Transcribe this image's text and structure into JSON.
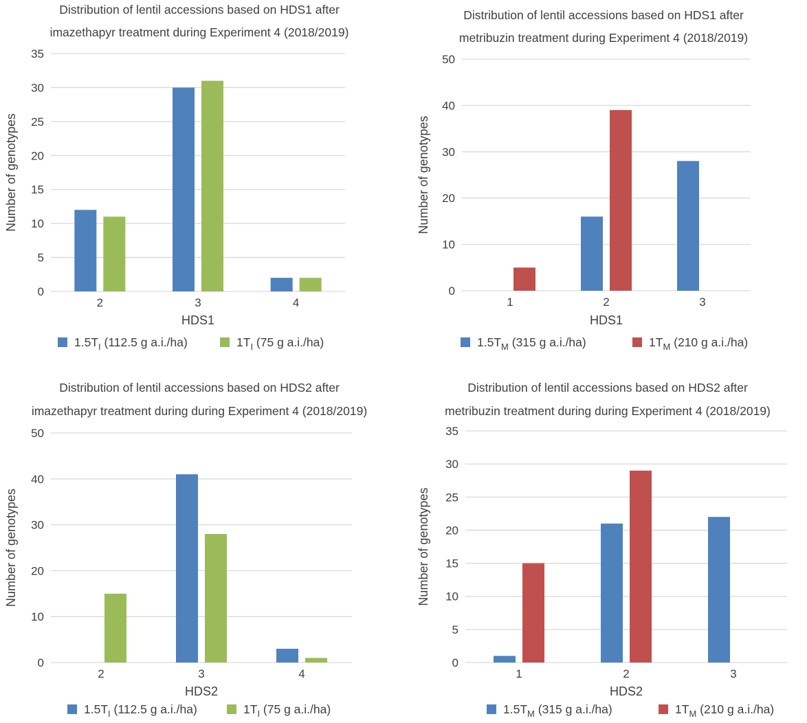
{
  "colors": {
    "blue": "#4f81bd",
    "green": "#9bbb59",
    "red": "#c0504d"
  },
  "chart_data": [
    {
      "type": "bar",
      "title": [
        "Distribution of lentil accessions based on HDS1 after",
        "imazethapyr treatment during Experiment 4 (2018/2019)"
      ],
      "xlabel": "HDS1",
      "ylabel": "Number of genotypes",
      "categories": [
        "2",
        "3",
        "4"
      ],
      "ylim": [
        0,
        35
      ],
      "ystep": 5,
      "grid": true,
      "legend_position": "bottom",
      "series": [
        {
          "name": "1.5T",
          "sub": "I",
          "rest": " (112.5 g a.i./ha)",
          "color": "blue",
          "values": [
            12,
            30,
            2
          ]
        },
        {
          "name": "1T",
          "sub": "I",
          "rest": "  (75 g a.i./ha)",
          "color": "green",
          "values": [
            11,
            31,
            2
          ]
        }
      ]
    },
    {
      "type": "bar",
      "title": [
        "Distribution of lentil accessions based on HDS1 after",
        "metribuzin treatment during Experiment 4 (2018/2019)"
      ],
      "xlabel": "HDS1",
      "ylabel": "Number of genotypes",
      "categories": [
        "1",
        "2",
        "3"
      ],
      "ylim": [
        0,
        50
      ],
      "ystep": 10,
      "grid": true,
      "legend_position": "bottom",
      "series": [
        {
          "name": "1.5T",
          "sub": "M",
          "rest": " (315 g a.i./ha)",
          "color": "blue",
          "values": [
            0,
            16,
            28
          ]
        },
        {
          "name": "1T",
          "sub": "M",
          "rest": " (210 g a.i./ha)",
          "color": "red",
          "values": [
            5,
            39,
            0
          ]
        }
      ]
    },
    {
      "type": "bar",
      "title": [
        "Distribution of lentil accessions based on HDS2 after",
        "imazethapyr treatment during during Experiment 4 (2018/2019)"
      ],
      "xlabel": "HDS2",
      "ylabel": "Number of genotypes",
      "categories": [
        "2",
        "3",
        "4"
      ],
      "ylim": [
        0,
        50
      ],
      "ystep": 10,
      "grid": true,
      "legend_position": "bottom",
      "series": [
        {
          "name": "1.5T",
          "sub": "I",
          "rest": " (112.5 g a.i./ha)",
          "color": "blue",
          "values": [
            0,
            41,
            3
          ]
        },
        {
          "name": "1T",
          "sub": "I",
          "rest": "  (75 g a.i./ha)",
          "color": "green",
          "values": [
            15,
            28,
            1
          ]
        }
      ]
    },
    {
      "type": "bar",
      "title": [
        "Distribution of lentil accessions based on HDS2 after",
        "metribuzin treatment during during Experiment 4 (2018/2019)"
      ],
      "xlabel": "HDS2",
      "ylabel": "Number of genotypes",
      "categories": [
        "1",
        "2",
        "3"
      ],
      "ylim": [
        0,
        35
      ],
      "ystep": 5,
      "grid": true,
      "legend_position": "bottom",
      "series": [
        {
          "name": "1.5T",
          "sub": "M",
          "rest": " (315 g a.i./ha)",
          "color": "blue",
          "values": [
            1,
            21,
            22
          ]
        },
        {
          "name": "1T",
          "sub": "M",
          "rest": " (210 g a.i./ha)",
          "color": "red",
          "values": [
            15,
            29,
            0
          ]
        }
      ]
    }
  ]
}
